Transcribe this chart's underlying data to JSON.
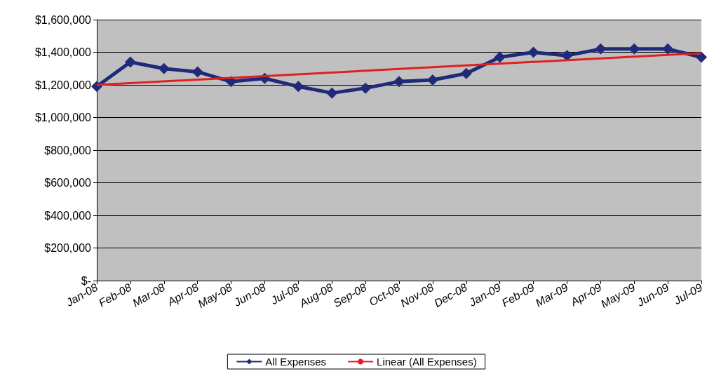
{
  "chart_data": {
    "type": "line",
    "categories": [
      "Jan-08",
      "Feb-08",
      "Mar-08",
      "Apr-08",
      "May-08",
      "Jun-08",
      "Jul-08",
      "Aug-08",
      "Sep-08",
      "Oct-08",
      "Nov-08",
      "Dec-08",
      "Jan-09",
      "Feb-09",
      "Mar-09",
      "Apr-09",
      "May-09",
      "Jun-09",
      "Jul-09"
    ],
    "series": [
      {
        "name": "All Expenses",
        "color": "#1f2a7a",
        "marker": "diamond",
        "values": [
          1190000,
          1340000,
          1300000,
          1280000,
          1220000,
          1240000,
          1190000,
          1150000,
          1180000,
          1220000,
          1230000,
          1270000,
          1370000,
          1400000,
          1380000,
          1420000,
          1420000,
          1420000,
          1370000
        ]
      },
      {
        "name": "Linear (All Expenses)",
        "color": "#e02020",
        "marker": "none",
        "x": [
          "Jan-08",
          "Jul-09"
        ],
        "values": [
          1200000,
          1395000
        ]
      }
    ],
    "ylim": [
      0,
      1600000
    ],
    "yticks": [
      {
        "value": 0,
        "label": "$-"
      },
      {
        "value": 200000,
        "label": "$200,000"
      },
      {
        "value": 400000,
        "label": "$400,000"
      },
      {
        "value": 600000,
        "label": "$600,000"
      },
      {
        "value": 800000,
        "label": "$800,000"
      },
      {
        "value": 1000000,
        "label": "$1,000,000"
      },
      {
        "value": 1200000,
        "label": "$1,200,000"
      },
      {
        "value": 1400000,
        "label": "$1,400,000"
      },
      {
        "value": 1600000,
        "label": "$1,600,000"
      }
    ],
    "grid": "y",
    "legend": "bottom"
  }
}
